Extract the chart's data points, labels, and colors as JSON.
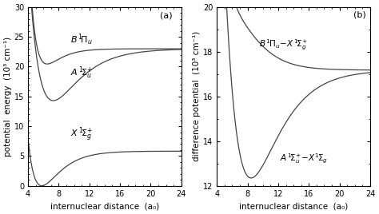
{
  "panel_a": {
    "title": "(a)",
    "xlabel": "internuclear distance  (a₀)",
    "ylabel": "potential  energy  (10³ cm⁻¹)",
    "xlim": [
      4,
      24
    ],
    "ylim": [
      0,
      30
    ],
    "xticks": [
      4,
      8,
      12,
      16,
      20,
      24
    ],
    "yticks": [
      0,
      5,
      10,
      15,
      20,
      25,
      30
    ]
  },
  "panel_b": {
    "title": "(b)",
    "xlabel": "internuclear distance  (a₀)",
    "ylabel": "difference potential  (10³ cm⁻¹)",
    "xlim": [
      4,
      24
    ],
    "ylim": [
      12,
      20
    ],
    "xticks": [
      4,
      8,
      12,
      16,
      20,
      24
    ],
    "yticks": [
      12,
      14,
      16,
      18,
      20
    ]
  },
  "X_params": {
    "De": 5.82,
    "re": 5.8,
    "a": 0.43,
    "Te": 0.0
  },
  "A_params": {
    "De": 8.7,
    "re": 7.3,
    "a": 0.3,
    "Te": 14.3
  },
  "B_params": {
    "De": 2.55,
    "re": 6.5,
    "a": 0.55,
    "Te": 20.45
  },
  "line_color": "#444444",
  "background": "#ffffff",
  "fontsize_label": 7.5,
  "fontsize_tick": 7,
  "fontsize_annotation": 8
}
